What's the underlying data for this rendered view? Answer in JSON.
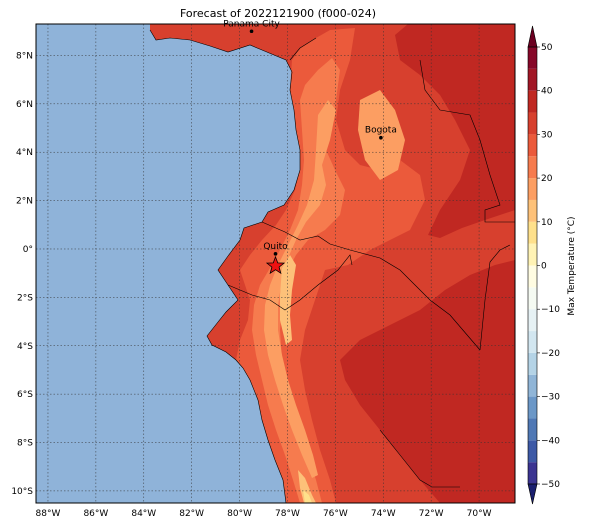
{
  "title": "Forecast of 2022121900 (f000-024)",
  "map": {
    "lon_range": [
      -88.5,
      -68.5
    ],
    "lat_range": [
      -10.5,
      9.3
    ],
    "lon_ticks": [
      "88°W",
      "86°W",
      "84°W",
      "82°W",
      "80°W",
      "78°W",
      "76°W",
      "74°W",
      "72°W",
      "70°W"
    ],
    "lon_values": [
      -88,
      -86,
      -84,
      -82,
      -80,
      -78,
      -76,
      -74,
      -72,
      -70
    ],
    "lat_ticks": [
      "8°N",
      "6°N",
      "4°N",
      "2°N",
      "0°",
      "2°S",
      "4°S",
      "6°S",
      "8°S",
      "10°S"
    ],
    "lat_values": [
      8,
      6,
      4,
      2,
      0,
      -2,
      -4,
      -6,
      -8,
      -10
    ],
    "ocean_color": "#8fb3d9",
    "gridlines": true
  },
  "cities": [
    {
      "name": "Panama City",
      "lon": -79.5,
      "lat": 9.0
    },
    {
      "name": "Bogota",
      "lon": -74.1,
      "lat": 4.6
    },
    {
      "name": "Quito",
      "lon": -78.5,
      "lat": -0.2
    }
  ],
  "marker": {
    "type": "star",
    "lon": -78.5,
    "lat": -0.7,
    "color": "#ee1111"
  },
  "colorbar": {
    "label": "Max Temperature (°C)",
    "ticks": [
      "50",
      "40",
      "30",
      "20",
      "10",
      "0",
      "−10",
      "−20",
      "−30",
      "−40",
      "−50"
    ],
    "tick_values": [
      50,
      40,
      30,
      20,
      10,
      0,
      -10,
      -20,
      -30,
      -40,
      -50
    ],
    "levels": [
      -50,
      -45,
      -40,
      -35,
      -30,
      -25,
      -20,
      -15,
      -10,
      -5,
      0,
      5,
      10,
      15,
      20,
      25,
      30,
      35,
      40,
      45,
      50
    ],
    "colors": [
      "#3b3491",
      "#3d59a6",
      "#4f78b5",
      "#6b97c7",
      "#90b5d7",
      "#b4d3e6",
      "#d2e6f0",
      "#e6f1f4",
      "#f5faf2",
      "#fffce2",
      "#fff3b5",
      "#fee08b",
      "#fdc179",
      "#fc9e62",
      "#f67b4e",
      "#eb5a3b",
      "#d7402e",
      "#c02822",
      "#a11625",
      "#860728"
    ],
    "under_color": "#1a1f6e",
    "over_color": "#6b0020",
    "extend": "both"
  }
}
